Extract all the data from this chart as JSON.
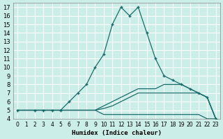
{
  "xlabel": "Humidex (Indice chaleur)",
  "bg_color": "#cceee8",
  "grid_color": "#ffffff",
  "line_color": "#1a6b6b",
  "xlim": [
    -0.5,
    23.5
  ],
  "ylim": [
    4,
    17.5
  ],
  "xticks": [
    0,
    1,
    2,
    3,
    4,
    5,
    6,
    7,
    8,
    9,
    10,
    11,
    12,
    13,
    14,
    15,
    16,
    17,
    18,
    19,
    20,
    21,
    22,
    23
  ],
  "yticks": [
    4,
    5,
    6,
    7,
    8,
    9,
    10,
    11,
    12,
    13,
    14,
    15,
    16,
    17
  ],
  "lines": [
    {
      "x": [
        0,
        2,
        3,
        4,
        5,
        6,
        7,
        8,
        9,
        10,
        11,
        12,
        13,
        14,
        15,
        16,
        17,
        18,
        19,
        20,
        21,
        22,
        23
      ],
      "y": [
        5,
        5,
        5,
        5,
        5,
        6,
        7,
        8,
        10,
        11.5,
        15,
        17,
        16,
        17,
        14,
        11,
        9,
        8.5,
        8,
        7.5,
        7,
        6.5,
        4
      ],
      "marker": true
    },
    {
      "x": [
        0,
        1,
        2,
        3,
        4,
        5,
        6,
        7,
        8,
        9,
        10,
        11,
        12,
        13,
        14,
        15,
        16,
        17,
        18,
        19,
        20,
        21,
        22,
        23
      ],
      "y": [
        5,
        5,
        5,
        5,
        5,
        5,
        5,
        5,
        5,
        5,
        5.5,
        6,
        6.5,
        7,
        7.5,
        7.5,
        7.5,
        8,
        8,
        8,
        7.5,
        7,
        6.5,
        4
      ],
      "marker": false
    },
    {
      "x": [
        0,
        1,
        2,
        3,
        4,
        5,
        6,
        7,
        8,
        9,
        10,
        11,
        12,
        13,
        14,
        15,
        16,
        17,
        18,
        19,
        20,
        21,
        22,
        23
      ],
      "y": [
        5,
        5,
        5,
        5,
        5,
        5,
        5,
        5,
        5,
        5,
        5.2,
        5.5,
        6,
        6.5,
        7,
        7,
        7,
        7,
        7,
        7,
        7,
        7,
        6.5,
        4
      ],
      "marker": false
    },
    {
      "x": [
        0,
        1,
        2,
        3,
        4,
        5,
        6,
        7,
        8,
        9,
        10,
        11,
        12,
        13,
        14,
        15,
        16,
        17,
        18,
        19,
        20,
        21,
        22,
        23
      ],
      "y": [
        5,
        5,
        5,
        5,
        5,
        5,
        5,
        5,
        5,
        5,
        4.5,
        4.5,
        4.5,
        4.5,
        4.5,
        4.5,
        4.5,
        4.5,
        4.5,
        4.5,
        4.5,
        4.5,
        4,
        4
      ],
      "marker": false
    }
  ]
}
